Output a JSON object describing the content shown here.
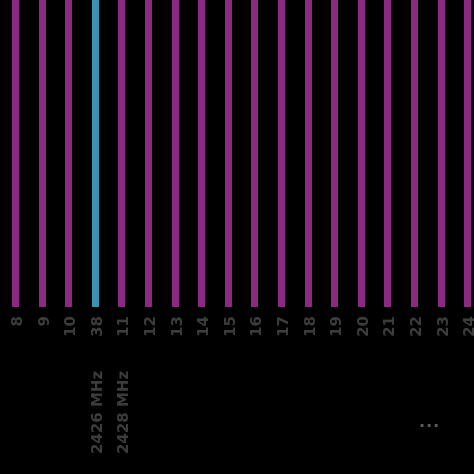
{
  "colors": {
    "bar": "#8b2a80",
    "highlight": "#3a93b3",
    "label": "#3c3c3c",
    "background": "#000000"
  },
  "channels": [
    {
      "label": "8",
      "highlight": false
    },
    {
      "label": "9",
      "highlight": false
    },
    {
      "label": "10",
      "highlight": false
    },
    {
      "label": "38",
      "highlight": true
    },
    {
      "label": "11",
      "highlight": false
    },
    {
      "label": "12",
      "highlight": false
    },
    {
      "label": "13",
      "highlight": false
    },
    {
      "label": "14",
      "highlight": false
    },
    {
      "label": "15",
      "highlight": false
    },
    {
      "label": "16",
      "highlight": false
    },
    {
      "label": "17",
      "highlight": false
    },
    {
      "label": "18",
      "highlight": false
    },
    {
      "label": "19",
      "highlight": false
    },
    {
      "label": "20",
      "highlight": false
    },
    {
      "label": "21",
      "highlight": false
    },
    {
      "label": "22",
      "highlight": false
    },
    {
      "label": "23",
      "highlight": false
    },
    {
      "label": "24",
      "highlight": false
    }
  ],
  "frequencies": [
    "2426 MHz",
    "2428 MHz"
  ],
  "ellipsis": "..."
}
